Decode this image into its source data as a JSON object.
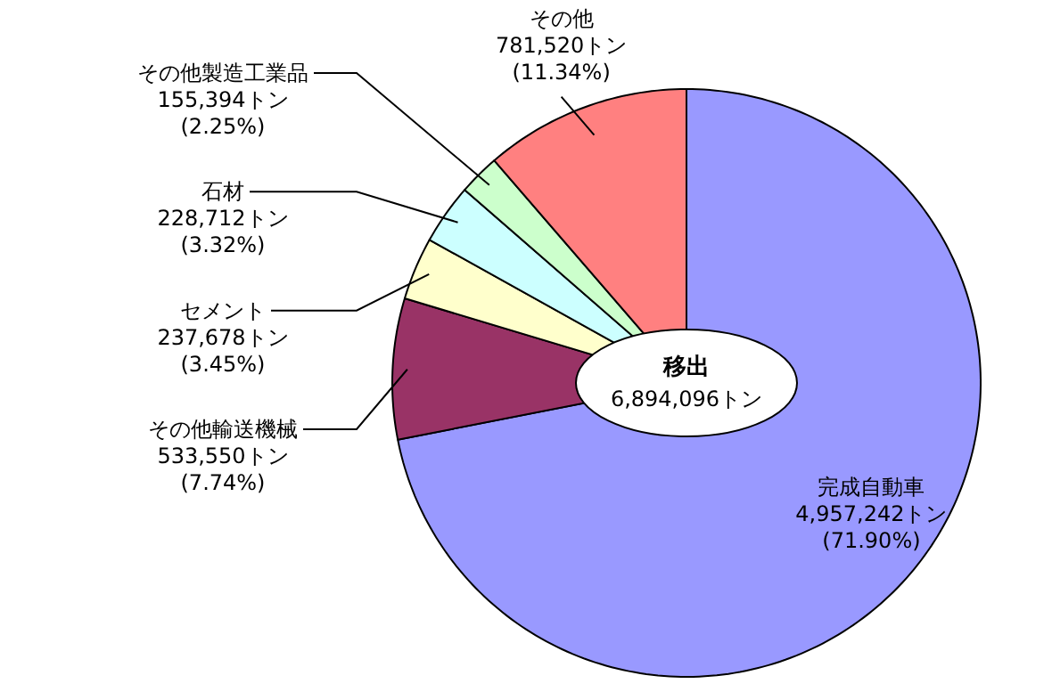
{
  "chart_data": {
    "type": "pie",
    "title": "移出",
    "subtitle": "6,894,096トン",
    "categories": [
      "完成自動車",
      "その他輸送機械",
      "セメント",
      "石材",
      "その他製造工業品",
      "その他"
    ],
    "values": [
      4957242,
      533550,
      237678,
      228712,
      155394,
      781520
    ],
    "colors": [
      "#9999ff",
      "#993366",
      "#ffffcc",
      "#ccffff",
      "#ccffcc",
      "#ff8080"
    ],
    "value_labels": [
      "4,957,242トン\n(71.90%)",
      "533,550トン\n(7.74%)",
      "237,678トン\n(3.45%)",
      "228,712トン\n(3.32%)",
      "155,394トン\n(2.25%)",
      "781,520トン\n(11.34%)"
    ],
    "legend": false
  }
}
